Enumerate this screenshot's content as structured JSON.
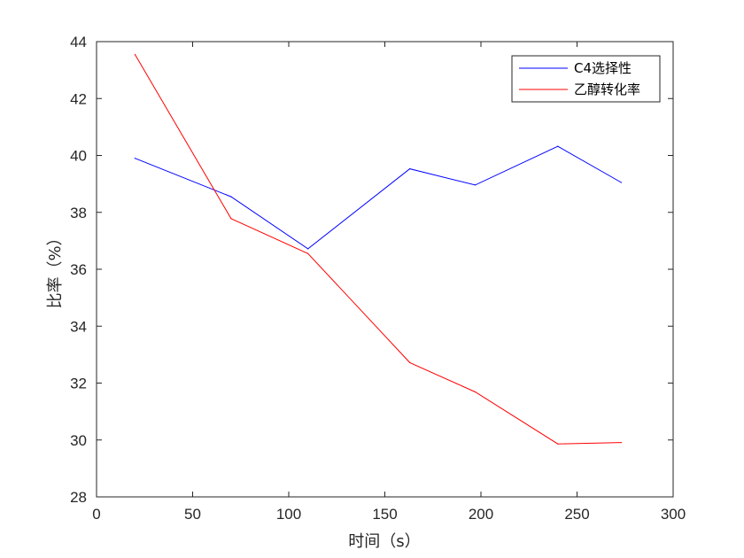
{
  "chart_data": {
    "type": "line",
    "xlabel": "时间（s）",
    "ylabel": "比率（%）",
    "xlim": [
      0,
      300
    ],
    "ylim": [
      28,
      44
    ],
    "xticks": [
      0,
      50,
      100,
      150,
      200,
      250,
      300
    ],
    "yticks": [
      28,
      30,
      32,
      34,
      36,
      38,
      40,
      42,
      44
    ],
    "grid": false,
    "legend_position": "top-right",
    "series": [
      {
        "name": "C4选择性",
        "color": "#0000ff",
        "x": [
          20,
          70,
          110,
          163,
          197,
          240,
          273
        ],
        "y": [
          39.9,
          38.55,
          36.72,
          39.53,
          38.96,
          40.32,
          39.05
        ]
      },
      {
        "name": "乙醇转化率",
        "color": "#ff0000",
        "x": [
          20,
          70,
          110,
          163,
          197,
          240,
          273
        ],
        "y": [
          43.55,
          37.78,
          36.55,
          32.72,
          31.69,
          29.86,
          29.91
        ]
      }
    ]
  }
}
